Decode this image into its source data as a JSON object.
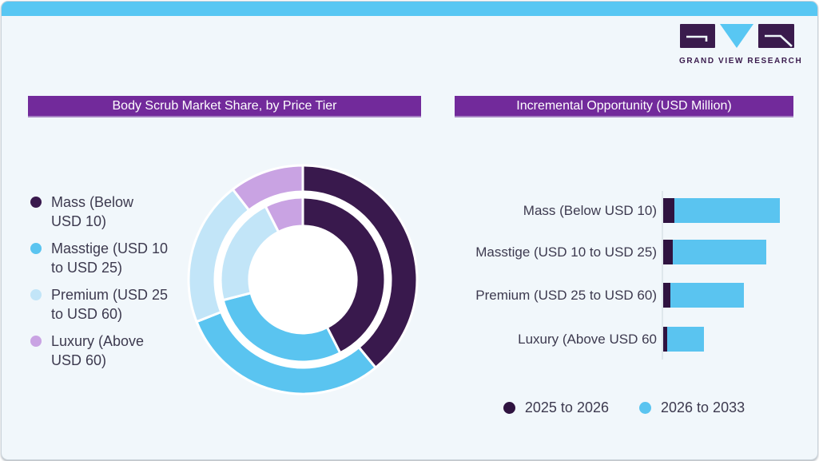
{
  "window": {
    "top_bar_color": "#58c7f3",
    "background": "#f1f7fb",
    "border_color": "#c9d2d9",
    "title_bar_color": "#722a9b",
    "text_color": "#3d3a4f"
  },
  "logo": {
    "company": "GRAND VIEW RESEARCH",
    "letters": "GVR",
    "dark_color": "#3a1b4d",
    "accent_color": "#58c7f3"
  },
  "left_panel": {
    "title": "Body Scrub Market Share, by Price Tier",
    "legend": [
      {
        "lines": [
          "Mass (Below",
          "USD 10)"
        ]
      },
      {
        "lines": [
          "Masstige (USD 10",
          "to USD 25)"
        ]
      },
      {
        "lines": [
          "Premium (USD 25",
          "to USD 60)"
        ]
      },
      {
        "lines": [
          "Luxury (Above",
          "USD 60)"
        ]
      }
    ]
  },
  "right_panel": {
    "title": "Incremental Opportunity (USD Million)"
  },
  "chart_data": [
    {
      "type": "pie",
      "subtype": "double-ring-donut",
      "title": "Body Scrub Market Share, by Price Tier",
      "categories": [
        "Mass (Below USD 10)",
        "Masstige (USD 10 to USD 25)",
        "Premium (USD 25 to USD 60)",
        "Luxury (Above USD 60)"
      ],
      "colors": [
        "#39194d",
        "#5ac4f0",
        "#c2e5f8",
        "#c9a3e3"
      ],
      "rings": [
        {
          "position": "inner",
          "values_pct": [
            42.5,
            28.5,
            21.5,
            7.5
          ]
        },
        {
          "position": "outer",
          "values_pct": [
            39.0,
            30.0,
            20.5,
            10.5
          ]
        }
      ],
      "start_angle": "12 o'clock, clockwise",
      "value_labels_shown": false,
      "legend_position": "left"
    },
    {
      "type": "bar",
      "orientation": "horizontal",
      "stacked": true,
      "title": "Incremental Opportunity (USD Million)",
      "categories": [
        "Mass (Below USD 10)",
        "Masstige (USD 10 to USD 25)",
        "Premium (USD 25 to USD 60)",
        "Luxury (Above USD 60"
      ],
      "series": [
        {
          "name": "2025 to 2026",
          "color": "#2f1340",
          "values": [
            10.5,
            9,
            7,
            3.5
          ]
        },
        {
          "name": "2026 to 2033",
          "color": "#5ac4f0",
          "values": [
            100,
            88.5,
            69.5,
            35
          ]
        }
      ],
      "value_axis_shown": false,
      "legend_position": "bottom"
    }
  ]
}
